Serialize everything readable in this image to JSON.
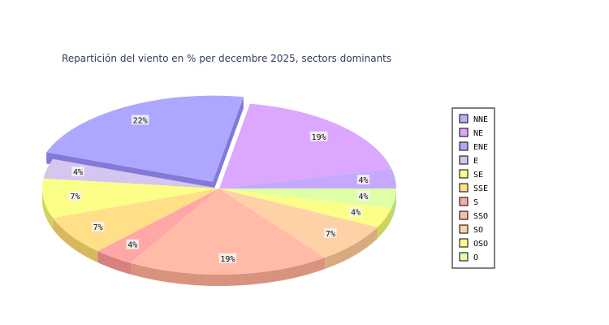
{
  "chart_data": {
    "type": "pie",
    "title": "Repartición del viento en % per decembre 2025, sectors dominants",
    "legend_position": "right",
    "slices": [
      {
        "label": "NNE",
        "value": 3.7,
        "display": "4%",
        "color": "#c4a9ff",
        "side": "#9f85dd"
      },
      {
        "label": "NE",
        "value": 18.5,
        "display": "19%",
        "color": "#dba7ff",
        "side": "#b27fdb"
      },
      {
        "label": "ENE",
        "value": 22.2,
        "display": "22%",
        "color": "#aea7ff",
        "side": "#8279d8"
      },
      {
        "label": "E",
        "value": 3.7,
        "display": "4%",
        "color": "#d4c6ee",
        "side": "#aa9ac8"
      },
      {
        "label": "SE",
        "value": 7.4,
        "display": "7%",
        "color": "#fbff88",
        "side": "#cfd35c"
      },
      {
        "label": "SSE",
        "value": 7.4,
        "display": "7%",
        "color": "#ffdf88",
        "side": "#d8b85f"
      },
      {
        "label": "S",
        "value": 3.7,
        "display": "4%",
        "color": "#ffa7a7",
        "side": "#d88080"
      },
      {
        "label": "SSO",
        "value": 18.5,
        "display": "19%",
        "color": "#ffbba7",
        "side": "#d8937f"
      },
      {
        "label": "SO",
        "value": 7.4,
        "display": "7%",
        "color": "#ffd1a7",
        "side": "#d8aa80"
      },
      {
        "label": "OSO",
        "value": 3.7,
        "display": "4%",
        "color": "#fbff88",
        "side": "#cfd35c"
      },
      {
        "label": "O",
        "value": 3.7,
        "display": "4%",
        "color": "#dfffa7",
        "side": "#b8d880"
      }
    ],
    "exploded": "ENE"
  }
}
